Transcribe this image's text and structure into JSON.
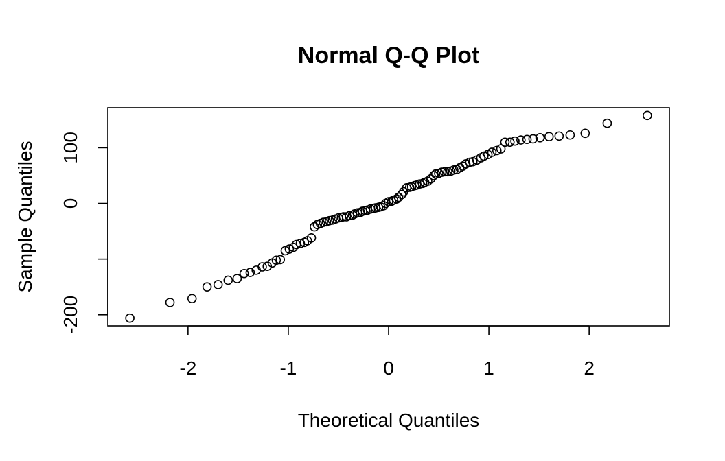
{
  "chart_data": {
    "type": "scatter",
    "title": "Normal Q-Q Plot",
    "xlabel": "Theoretical Quantiles",
    "ylabel": "Sample Quantiles",
    "xlim": [
      -2.8,
      2.8
    ],
    "ylim": [
      -220,
      172
    ],
    "xticks": [
      -2,
      -1,
      0,
      1,
      2
    ],
    "xtick_labels": [
      "-2",
      "-1",
      "0",
      "1",
      "2"
    ],
    "yticks": [
      -200,
      -100,
      0,
      100
    ],
    "ytick_labels": [
      "-200",
      "",
      "0",
      "100"
    ],
    "grid": false,
    "x": [
      -2.58,
      -2.18,
      -1.96,
      -1.81,
      -1.7,
      -1.6,
      -1.51,
      -1.44,
      -1.38,
      -1.32,
      -1.26,
      -1.21,
      -1.16,
      -1.12,
      -1.08,
      -1.03,
      -0.99,
      -0.95,
      -0.92,
      -0.88,
      -0.84,
      -0.81,
      -0.77,
      -0.74,
      -0.71,
      -0.68,
      -0.65,
      -0.62,
      -0.59,
      -0.56,
      -0.53,
      -0.5,
      -0.47,
      -0.45,
      -0.42,
      -0.39,
      -0.36,
      -0.34,
      -0.31,
      -0.28,
      -0.26,
      -0.23,
      -0.21,
      -0.18,
      -0.15,
      -0.13,
      -0.1,
      -0.08,
      -0.05,
      -0.03,
      0.0,
      0.03,
      0.05,
      0.08,
      0.1,
      0.13,
      0.15,
      0.18,
      0.21,
      0.23,
      0.26,
      0.28,
      0.31,
      0.34,
      0.36,
      0.39,
      0.42,
      0.45,
      0.47,
      0.5,
      0.53,
      0.56,
      0.59,
      0.62,
      0.65,
      0.68,
      0.71,
      0.74,
      0.77,
      0.81,
      0.84,
      0.88,
      0.92,
      0.95,
      0.99,
      1.03,
      1.08,
      1.12,
      1.16,
      1.21,
      1.26,
      1.32,
      1.38,
      1.44,
      1.51,
      1.6,
      1.7,
      1.81,
      1.96,
      2.18,
      2.58
    ],
    "y": [
      -206,
      -178,
      -171,
      -150,
      -146,
      -138,
      -135,
      -126,
      -124,
      -120,
      -114,
      -113,
      -107,
      -102,
      -101,
      -85,
      -82,
      -79,
      -74,
      -72,
      -70,
      -67,
      -62,
      -42,
      -38,
      -36,
      -34,
      -33,
      -31,
      -30,
      -28,
      -26,
      -25,
      -24,
      -24,
      -22,
      -21,
      -19,
      -17,
      -16,
      -14,
      -13,
      -12,
      -10,
      -9,
      -8,
      -7,
      -6,
      -4,
      0,
      3,
      4,
      6,
      8,
      11,
      16,
      21,
      28,
      29,
      30,
      32,
      33,
      35,
      36,
      38,
      40,
      44,
      50,
      53,
      54,
      56,
      57,
      57,
      58,
      60,
      61,
      64,
      67,
      71,
      74,
      75,
      78,
      82,
      85,
      88,
      92,
      95,
      98,
      110,
      110,
      112,
      114,
      115,
      116,
      118,
      120,
      121,
      123,
      126,
      144,
      158
    ]
  }
}
